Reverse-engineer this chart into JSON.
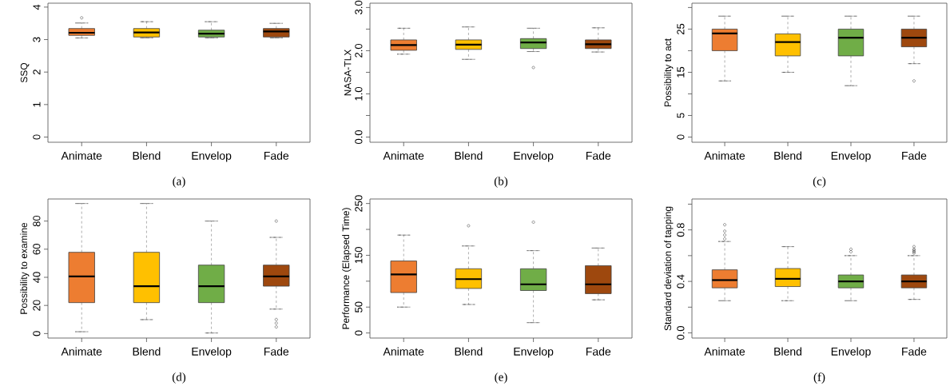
{
  "chart_data": [
    {
      "type": "box",
      "ylabel": "SSQ",
      "categories": [
        "Animate",
        "Blend",
        "Envelop",
        "Fade"
      ],
      "colors": [
        "#ed7d31",
        "#ffc000",
        "#70ad47",
        "#9e480e"
      ],
      "ylim": [
        -0.16,
        4.12
      ],
      "yticks": [
        0,
        1,
        2,
        3,
        4
      ],
      "annotations": [
        "(a)"
      ],
      "boxes": [
        {
          "low": 3.05,
          "q1": 3.13,
          "median": 3.21,
          "q3": 3.34,
          "high": 3.51,
          "outliers": [
            3.67
          ]
        },
        {
          "low": 3.05,
          "q1": 3.08,
          "median": 3.22,
          "q3": 3.34,
          "high": 3.55
        },
        {
          "low": 3.05,
          "q1": 3.08,
          "median": 3.18,
          "q3": 3.29,
          "high": 3.55
        },
        {
          "low": 3.05,
          "q1": 3.08,
          "median": 3.25,
          "q3": 3.34,
          "high": 3.5
        }
      ]
    },
    {
      "type": "box",
      "ylabel": "NASA-TLX",
      "categories": [
        "Animate",
        "Blend",
        "Envelop",
        "Fade"
      ],
      "colors": [
        "#ed7d31",
        "#ffc000",
        "#70ad47",
        "#9e480e"
      ],
      "ylim": [
        -0.12,
        3.1
      ],
      "yticks": [
        {
          "value": 0,
          "label": "0.0"
        },
        {
          "value": 0.5,
          "label": null
        },
        {
          "value": 1,
          "label": "1.0"
        },
        {
          "value": 1.5,
          "label": null
        },
        {
          "value": 2,
          "label": "2.0"
        },
        {
          "value": 2.5,
          "label": null
        },
        {
          "value": 3,
          "label": "3.0"
        }
      ],
      "annotations": [
        "(b)"
      ],
      "boxes": [
        {
          "low": 1.92,
          "q1": 2.01,
          "median": 2.13,
          "q3": 2.25,
          "high": 2.52
        },
        {
          "low": 1.8,
          "q1": 2.03,
          "median": 2.14,
          "q3": 2.25,
          "high": 2.55
        },
        {
          "low": 1.98,
          "q1": 2.05,
          "median": 2.19,
          "q3": 2.28,
          "high": 2.52,
          "outliers": [
            1.61
          ]
        },
        {
          "low": 1.97,
          "q1": 2.05,
          "median": 2.15,
          "q3": 2.25,
          "high": 2.53
        }
      ]
    },
    {
      "type": "box",
      "ylabel": "Possibility to act",
      "categories": [
        "Animate",
        "Blend",
        "Envelop",
        "Fade"
      ],
      "colors": [
        "#ed7d31",
        "#ffc000",
        "#70ad47",
        "#9e480e"
      ],
      "ylim": [
        -1.2,
        31
      ],
      "yticks": [
        0,
        5,
        {
          "value": 10,
          "label": null
        },
        15,
        {
          "value": 20,
          "label": null
        },
        25,
        {
          "value": 30,
          "label": null
        }
      ],
      "annotations": [
        "(c)"
      ],
      "boxes": [
        {
          "low": 13,
          "q1": 20,
          "median": 24,
          "q3": 25,
          "high": 28
        },
        {
          "low": 15,
          "q1": 18.8,
          "median": 22,
          "q3": 23.9,
          "high": 28
        },
        {
          "low": 11.9,
          "q1": 18.8,
          "median": 23,
          "q3": 25,
          "high": 28
        },
        {
          "low": 17,
          "q1": 20.9,
          "median": 23,
          "q3": 25,
          "high": 28,
          "outliers": [
            13
          ]
        }
      ]
    },
    {
      "type": "box",
      "ylabel": "Possibility to examine",
      "categories": [
        "Animate",
        "Blend",
        "Envelop",
        "Fade"
      ],
      "colors": [
        "#ed7d31",
        "#ffc000",
        "#70ad47",
        "#9e480e"
      ],
      "ylim": [
        -3.2,
        95.7
      ],
      "yticks": [
        0,
        20,
        40,
        60,
        80
      ],
      "annotations": [
        "(d)"
      ],
      "boxes": [
        {
          "low": 1.3,
          "q1": 22,
          "median": 40.6,
          "q3": 57.8,
          "high": 92.5
        },
        {
          "low": 9.9,
          "q1": 22,
          "median": 33.7,
          "q3": 57.8,
          "high": 92.5
        },
        {
          "low": 0.4,
          "q1": 22,
          "median": 33.7,
          "q3": 48.7,
          "high": 80
        },
        {
          "low": 17.4,
          "q1": 33.7,
          "median": 40.6,
          "q3": 48.7,
          "high": 68.4,
          "outliers": [
            80,
            10,
            7.4,
            4.7
          ]
        }
      ]
    },
    {
      "type": "box",
      "ylabel": "Performance (Elapsed Time)",
      "categories": [
        "Animate",
        "Blend",
        "Envelop",
        "Fade"
      ],
      "colors": [
        "#ed7d31",
        "#ffc000",
        "#70ad47",
        "#9e480e"
      ],
      "ylim": [
        -9.8,
        258.7
      ],
      "yticks": [
        0,
        50,
        {
          "value": 100,
          "label": null
        },
        150,
        {
          "value": 200,
          "label": null
        },
        250
      ],
      "annotations": [
        "(e)"
      ],
      "boxes": [
        {
          "low": 50,
          "q1": 78,
          "median": 113,
          "q3": 139,
          "high": 189
        },
        {
          "low": 55,
          "q1": 86,
          "median": 104,
          "q3": 124,
          "high": 168,
          "outliers": [
            207
          ]
        },
        {
          "low": 20,
          "q1": 82,
          "median": 94,
          "q3": 124,
          "high": 159,
          "outliers": [
            214
          ]
        },
        {
          "low": 64,
          "q1": 76,
          "median": 94,
          "q3": 130,
          "high": 164
        }
      ]
    },
    {
      "type": "box",
      "ylabel": "Standard deviation of tapping",
      "categories": [
        "Animate",
        "Blend",
        "Envelop",
        "Fade"
      ],
      "colors": [
        "#ed7d31",
        "#ffc000",
        "#70ad47",
        "#9e480e"
      ],
      "ylim": [
        -0.04,
        1.04
      ],
      "yticks": [
        {
          "value": 0,
          "label": "0.0"
        },
        {
          "value": 0.2,
          "label": null
        },
        {
          "value": 0.4,
          "label": "0.4"
        },
        {
          "value": 0.6,
          "label": null
        },
        {
          "value": 0.8,
          "label": "0.8"
        },
        {
          "value": 1.0,
          "label": null
        }
      ],
      "annotations": [
        "(f)"
      ],
      "boxes": [
        {
          "low": 0.25,
          "q1": 0.35,
          "median": 0.41,
          "q3": 0.49,
          "high": 0.71,
          "outliers": [
            0.73,
            0.76,
            0.79,
            0.84
          ]
        },
        {
          "low": 0.25,
          "q1": 0.36,
          "median": 0.42,
          "q3": 0.5,
          "high": 0.67
        },
        {
          "low": 0.25,
          "q1": 0.35,
          "median": 0.4,
          "q3": 0.45,
          "high": 0.6,
          "outliers": [
            0.63,
            0.65
          ]
        },
        {
          "low": 0.26,
          "q1": 0.35,
          "median": 0.4,
          "q3": 0.45,
          "high": 0.6,
          "outliers": [
            0.62,
            0.63,
            0.64,
            0.65,
            0.67
          ]
        }
      ]
    }
  ]
}
